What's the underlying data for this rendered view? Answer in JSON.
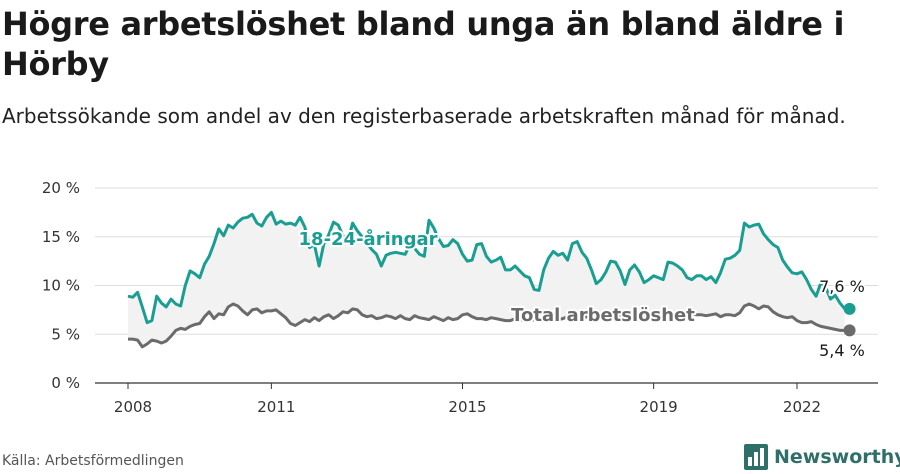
{
  "title": "Högre arbetslöshet bland unga än bland äldre i Hörby",
  "subtitle": "Arbetssökande som andel av den registerbaserade arbetskraften månad för månad.",
  "source": "Källa: Arbetsförmedlingen",
  "brand": "Newsworthy",
  "colors": {
    "youth": "#1a9e92",
    "total": "#6b6b6b",
    "band": "#f2f2f2",
    "grid": "#dddddd",
    "brand": "#2f6f6a"
  },
  "chart_data": {
    "type": "line",
    "title": "Högre arbetslöshet bland unga än bland äldre i Hörby",
    "xlabel": "",
    "ylabel": "",
    "ylim": [
      0,
      20
    ],
    "xlim": [
      2008.0,
      2023.25
    ],
    "y_ticks": [
      0,
      5,
      10,
      15,
      20
    ],
    "y_tick_labels": [
      "0 %",
      "5 %",
      "10 %",
      "15 %",
      "20 %"
    ],
    "x_ticks": [
      2008,
      2011,
      2015,
      2019,
      2022
    ],
    "x_tick_labels": [
      "2008",
      "2011",
      "2015",
      "2019",
      "2022"
    ],
    "grid": true,
    "series": [
      {
        "name": "18-24-åringar",
        "label": "18-24-åringar",
        "end_label": "7,6 %",
        "points": [
          [
            2008.0,
            8.9
          ],
          [
            2008.1,
            8.8
          ],
          [
            2008.2,
            9.3
          ],
          [
            2008.3,
            7.8
          ],
          [
            2008.4,
            6.2
          ],
          [
            2008.5,
            6.4
          ],
          [
            2008.6,
            8.9
          ],
          [
            2008.7,
            8.2
          ],
          [
            2008.8,
            7.8
          ],
          [
            2008.9,
            8.6
          ],
          [
            2009.0,
            8.1
          ],
          [
            2009.1,
            7.9
          ],
          [
            2009.2,
            10.0
          ],
          [
            2009.3,
            11.5
          ],
          [
            2009.4,
            11.2
          ],
          [
            2009.5,
            10.8
          ],
          [
            2009.6,
            12.2
          ],
          [
            2009.7,
            13.0
          ],
          [
            2009.8,
            14.3
          ],
          [
            2009.9,
            15.8
          ],
          [
            2010.0,
            15.1
          ],
          [
            2010.1,
            16.2
          ],
          [
            2010.2,
            15.9
          ],
          [
            2010.3,
            16.5
          ],
          [
            2010.4,
            16.9
          ],
          [
            2010.5,
            17.0
          ],
          [
            2010.6,
            17.3
          ],
          [
            2010.7,
            16.4
          ],
          [
            2010.8,
            16.1
          ],
          [
            2010.9,
            17.0
          ],
          [
            2011.0,
            17.5
          ],
          [
            2011.1,
            16.3
          ],
          [
            2011.2,
            16.6
          ],
          [
            2011.3,
            16.3
          ],
          [
            2011.4,
            16.4
          ],
          [
            2011.5,
            16.2
          ],
          [
            2011.6,
            17.0
          ],
          [
            2011.7,
            16.0
          ],
          [
            2011.8,
            13.9
          ],
          [
            2011.9,
            14.2
          ],
          [
            2012.0,
            12.0
          ],
          [
            2012.1,
            14.3
          ],
          [
            2012.2,
            15.2
          ],
          [
            2012.3,
            16.5
          ],
          [
            2012.4,
            16.2
          ],
          [
            2012.5,
            15.1
          ],
          [
            2012.6,
            14.5
          ],
          [
            2012.7,
            16.4
          ],
          [
            2012.8,
            15.6
          ],
          [
            2012.9,
            15.0
          ],
          [
            2013.0,
            14.3
          ],
          [
            2013.1,
            13.7
          ],
          [
            2013.2,
            13.2
          ],
          [
            2013.3,
            12.0
          ],
          [
            2013.4,
            13.1
          ],
          [
            2013.5,
            13.3
          ],
          [
            2013.6,
            13.4
          ],
          [
            2013.7,
            13.3
          ],
          [
            2013.8,
            13.2
          ],
          [
            2013.9,
            14.2
          ],
          [
            2014.0,
            13.8
          ],
          [
            2014.1,
            13.2
          ],
          [
            2014.2,
            13.0
          ],
          [
            2014.3,
            16.7
          ],
          [
            2014.4,
            15.9
          ],
          [
            2014.5,
            14.8
          ],
          [
            2014.6,
            14.0
          ],
          [
            2014.7,
            14.1
          ],
          [
            2014.8,
            14.7
          ],
          [
            2014.9,
            14.3
          ],
          [
            2015.0,
            13.2
          ],
          [
            2015.1,
            12.5
          ],
          [
            2015.2,
            12.6
          ],
          [
            2015.3,
            14.2
          ],
          [
            2015.4,
            14.3
          ],
          [
            2015.5,
            13.0
          ],
          [
            2015.6,
            12.4
          ],
          [
            2015.7,
            12.6
          ],
          [
            2015.8,
            12.9
          ],
          [
            2015.9,
            11.6
          ],
          [
            2016.0,
            11.6
          ],
          [
            2016.1,
            12.0
          ],
          [
            2016.2,
            11.5
          ],
          [
            2016.3,
            11.0
          ],
          [
            2016.4,
            10.8
          ],
          [
            2016.5,
            9.6
          ],
          [
            2016.6,
            9.5
          ],
          [
            2016.7,
            11.6
          ],
          [
            2016.8,
            12.8
          ],
          [
            2016.9,
            13.5
          ],
          [
            2017.0,
            13.1
          ],
          [
            2017.1,
            13.3
          ],
          [
            2017.2,
            12.6
          ],
          [
            2017.3,
            14.3
          ],
          [
            2017.4,
            14.5
          ],
          [
            2017.5,
            13.4
          ],
          [
            2017.6,
            12.8
          ],
          [
            2017.7,
            11.6
          ],
          [
            2017.8,
            10.2
          ],
          [
            2017.9,
            10.6
          ],
          [
            2018.0,
            11.4
          ],
          [
            2018.1,
            12.5
          ],
          [
            2018.2,
            12.4
          ],
          [
            2018.3,
            11.5
          ],
          [
            2018.4,
            10.1
          ],
          [
            2018.5,
            11.6
          ],
          [
            2018.6,
            12.1
          ],
          [
            2018.7,
            11.4
          ],
          [
            2018.8,
            10.3
          ],
          [
            2018.9,
            10.6
          ],
          [
            2019.0,
            11.0
          ],
          [
            2019.1,
            10.8
          ],
          [
            2019.2,
            10.6
          ],
          [
            2019.3,
            12.4
          ],
          [
            2019.4,
            12.3
          ],
          [
            2019.5,
            12.0
          ],
          [
            2019.6,
            11.6
          ],
          [
            2019.7,
            10.8
          ],
          [
            2019.8,
            10.6
          ],
          [
            2019.9,
            11.0
          ],
          [
            2020.0,
            11.0
          ],
          [
            2020.1,
            10.6
          ],
          [
            2020.2,
            10.9
          ],
          [
            2020.3,
            10.3
          ],
          [
            2020.4,
            11.3
          ],
          [
            2020.5,
            12.7
          ],
          [
            2020.6,
            12.8
          ],
          [
            2020.7,
            13.1
          ],
          [
            2020.8,
            13.6
          ],
          [
            2020.9,
            16.4
          ],
          [
            2021.0,
            16.0
          ],
          [
            2021.1,
            16.2
          ],
          [
            2021.2,
            16.3
          ],
          [
            2021.3,
            15.3
          ],
          [
            2021.4,
            14.7
          ],
          [
            2021.5,
            14.2
          ],
          [
            2021.6,
            13.9
          ],
          [
            2021.7,
            12.6
          ],
          [
            2021.8,
            11.9
          ],
          [
            2021.9,
            11.3
          ],
          [
            2022.0,
            11.2
          ],
          [
            2022.1,
            11.4
          ],
          [
            2022.2,
            10.6
          ],
          [
            2022.3,
            9.6
          ],
          [
            2022.4,
            8.9
          ],
          [
            2022.5,
            10.3
          ],
          [
            2022.6,
            9.8
          ],
          [
            2022.7,
            8.6
          ],
          [
            2022.8,
            9.0
          ],
          [
            2022.9,
            8.2
          ],
          [
            2023.0,
            7.6
          ]
        ]
      },
      {
        "name": "Total arbetslöshet",
        "label": "Total arbetslöshet",
        "end_label": "5,4 %",
        "points": [
          [
            2008.0,
            4.5
          ],
          [
            2008.1,
            4.5
          ],
          [
            2008.2,
            4.4
          ],
          [
            2008.3,
            3.7
          ],
          [
            2008.4,
            4.0
          ],
          [
            2008.5,
            4.4
          ],
          [
            2008.6,
            4.3
          ],
          [
            2008.7,
            4.1
          ],
          [
            2008.8,
            4.3
          ],
          [
            2008.9,
            4.8
          ],
          [
            2009.0,
            5.4
          ],
          [
            2009.1,
            5.6
          ],
          [
            2009.2,
            5.5
          ],
          [
            2009.3,
            5.8
          ],
          [
            2009.4,
            6.0
          ],
          [
            2009.5,
            6.1
          ],
          [
            2009.6,
            6.8
          ],
          [
            2009.7,
            7.3
          ],
          [
            2009.8,
            6.6
          ],
          [
            2009.9,
            7.1
          ],
          [
            2010.0,
            7.0
          ],
          [
            2010.1,
            7.8
          ],
          [
            2010.2,
            8.1
          ],
          [
            2010.3,
            7.9
          ],
          [
            2010.4,
            7.4
          ],
          [
            2010.5,
            7.0
          ],
          [
            2010.6,
            7.5
          ],
          [
            2010.7,
            7.6
          ],
          [
            2010.8,
            7.2
          ],
          [
            2010.9,
            7.4
          ],
          [
            2011.0,
            7.4
          ],
          [
            2011.1,
            7.5
          ],
          [
            2011.2,
            7.1
          ],
          [
            2011.3,
            6.7
          ],
          [
            2011.4,
            6.1
          ],
          [
            2011.5,
            5.9
          ],
          [
            2011.6,
            6.2
          ],
          [
            2011.7,
            6.5
          ],
          [
            2011.8,
            6.3
          ],
          [
            2011.9,
            6.7
          ],
          [
            2012.0,
            6.4
          ],
          [
            2012.1,
            6.8
          ],
          [
            2012.2,
            7.0
          ],
          [
            2012.3,
            6.6
          ],
          [
            2012.4,
            6.9
          ],
          [
            2012.5,
            7.3
          ],
          [
            2012.6,
            7.2
          ],
          [
            2012.7,
            7.6
          ],
          [
            2012.8,
            7.5
          ],
          [
            2012.9,
            7.0
          ],
          [
            2013.0,
            6.8
          ],
          [
            2013.1,
            6.9
          ],
          [
            2013.2,
            6.6
          ],
          [
            2013.3,
            6.7
          ],
          [
            2013.4,
            6.9
          ],
          [
            2013.5,
            6.8
          ],
          [
            2013.6,
            6.6
          ],
          [
            2013.7,
            6.9
          ],
          [
            2013.8,
            6.6
          ],
          [
            2013.9,
            6.5
          ],
          [
            2014.0,
            6.9
          ],
          [
            2014.1,
            6.7
          ],
          [
            2014.2,
            6.6
          ],
          [
            2014.3,
            6.5
          ],
          [
            2014.4,
            6.8
          ],
          [
            2014.5,
            6.6
          ],
          [
            2014.6,
            6.4
          ],
          [
            2014.7,
            6.7
          ],
          [
            2014.8,
            6.5
          ],
          [
            2014.9,
            6.6
          ],
          [
            2015.0,
            7.0
          ],
          [
            2015.1,
            7.1
          ],
          [
            2015.2,
            6.8
          ],
          [
            2015.3,
            6.6
          ],
          [
            2015.4,
            6.6
          ],
          [
            2015.5,
            6.5
          ],
          [
            2015.6,
            6.7
          ],
          [
            2015.7,
            6.6
          ],
          [
            2015.8,
            6.5
          ],
          [
            2015.9,
            6.4
          ],
          [
            2016.0,
            6.4
          ],
          [
            2016.1,
            6.6
          ],
          [
            2016.2,
            6.5
          ],
          [
            2016.3,
            6.4
          ],
          [
            2016.4,
            6.4
          ],
          [
            2016.5,
            6.5
          ],
          [
            2016.6,
            6.4
          ],
          [
            2016.7,
            6.5
          ],
          [
            2016.8,
            6.5
          ],
          [
            2016.9,
            6.6
          ],
          [
            2017.0,
            6.5
          ],
          [
            2017.1,
            6.6
          ],
          [
            2017.2,
            6.8
          ],
          [
            2017.3,
            6.9
          ],
          [
            2017.4,
            6.7
          ],
          [
            2017.5,
            6.6
          ],
          [
            2017.6,
            6.8
          ],
          [
            2017.7,
            6.7
          ],
          [
            2017.8,
            6.6
          ],
          [
            2017.9,
            6.8
          ],
          [
            2018.0,
            6.9
          ],
          [
            2018.1,
            7.0
          ],
          [
            2018.2,
            6.9
          ],
          [
            2018.3,
            7.0
          ],
          [
            2018.4,
            6.8
          ],
          [
            2018.5,
            6.9
          ],
          [
            2018.6,
            6.9
          ],
          [
            2018.7,
            7.0
          ],
          [
            2018.8,
            7.0
          ],
          [
            2018.9,
            7.1
          ],
          [
            2019.0,
            7.0
          ],
          [
            2019.1,
            7.0
          ],
          [
            2019.2,
            7.0
          ],
          [
            2019.3,
            7.0
          ],
          [
            2019.4,
            7.1
          ],
          [
            2019.5,
            7.0
          ],
          [
            2019.6,
            6.9
          ],
          [
            2019.7,
            7.0
          ],
          [
            2019.8,
            7.1
          ],
          [
            2019.9,
            7.0
          ],
          [
            2020.0,
            7.0
          ],
          [
            2020.1,
            6.9
          ],
          [
            2020.2,
            7.0
          ],
          [
            2020.3,
            7.1
          ],
          [
            2020.4,
            6.8
          ],
          [
            2020.5,
            7.0
          ],
          [
            2020.6,
            7.0
          ],
          [
            2020.7,
            6.9
          ],
          [
            2020.8,
            7.2
          ],
          [
            2020.9,
            7.9
          ],
          [
            2021.0,
            8.1
          ],
          [
            2021.1,
            7.9
          ],
          [
            2021.2,
            7.6
          ],
          [
            2021.3,
            7.9
          ],
          [
            2021.4,
            7.8
          ],
          [
            2021.5,
            7.3
          ],
          [
            2021.6,
            7.0
          ],
          [
            2021.7,
            6.8
          ],
          [
            2021.8,
            6.7
          ],
          [
            2021.9,
            6.8
          ],
          [
            2022.0,
            6.4
          ],
          [
            2022.1,
            6.2
          ],
          [
            2022.2,
            6.2
          ],
          [
            2022.3,
            6.3
          ],
          [
            2022.4,
            6.0
          ],
          [
            2022.5,
            5.8
          ],
          [
            2022.6,
            5.7
          ],
          [
            2022.7,
            5.6
          ],
          [
            2022.8,
            5.5
          ],
          [
            2022.9,
            5.4
          ],
          [
            2023.0,
            5.4
          ]
        ]
      }
    ]
  }
}
